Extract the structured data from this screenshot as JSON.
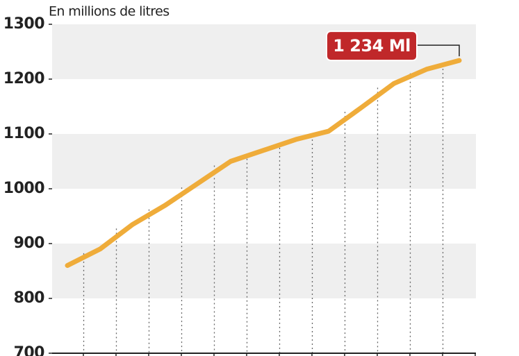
{
  "chart_data": {
    "type": "line",
    "title": "En millions de litres",
    "categories": [
      null,
      null,
      null,
      null,
      null,
      null,
      null,
      null,
      null,
      null,
      null,
      null,
      null
    ],
    "values": [
      860,
      890,
      935,
      970,
      1010,
      1050,
      1070,
      1090,
      1105,
      1148,
      1192,
      1218,
      1234
    ],
    "color": "#efac3a",
    "ylim": [
      700,
      1300
    ],
    "yticks": [
      700,
      800,
      900,
      1000,
      1100,
      1200,
      1300
    ],
    "annotation": "1 234 Ml",
    "annotation_color": "#c0282a",
    "band_color": "#efefef"
  }
}
